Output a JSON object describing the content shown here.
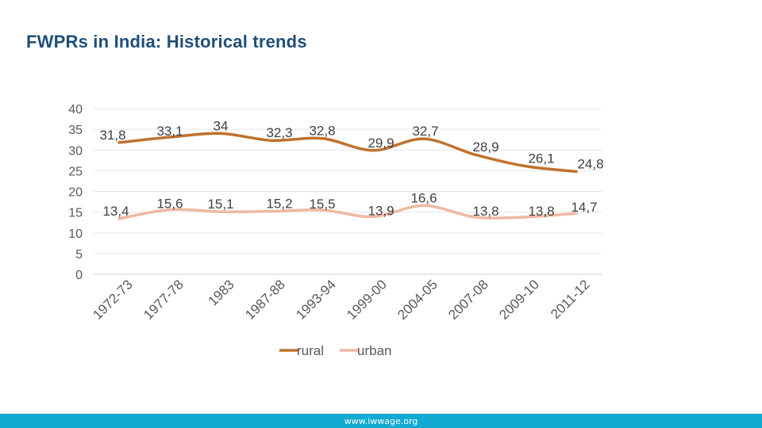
{
  "slide": {
    "title": "FWPRs in India: Historical trends",
    "footer": "www.iwwage.org"
  },
  "colors": {
    "title": "#1f4e79",
    "rural": "#c0712d",
    "urban": "#f0b7a4",
    "footer_bar": "#12a9d2"
  },
  "chart_data": {
    "type": "line",
    "title": "",
    "xlabel": "",
    "ylabel": "",
    "categories": [
      "1972-73",
      "1977-78",
      "1983",
      "1987-88",
      "1993-94",
      "1999-00",
      "2004-05",
      "2007-08",
      "2009-10",
      "2011-12"
    ],
    "ylim": [
      0,
      40
    ],
    "yticks": [
      0,
      5,
      10,
      15,
      20,
      25,
      30,
      35,
      40
    ],
    "grid": true,
    "legend": "bottom",
    "series": [
      {
        "name": "rural",
        "values": [
          31.8,
          33.1,
          34,
          32.3,
          32.8,
          29.9,
          32.7,
          28.9,
          26.1,
          24.8
        ],
        "labels": [
          "31,8",
          "33,1",
          "34",
          "32,3",
          "32,8",
          "29,9",
          "32,7",
          "28,9",
          "26,1",
          "24,8"
        ]
      },
      {
        "name": "urban",
        "values": [
          13.4,
          15.6,
          15.1,
          15.2,
          15.5,
          13.9,
          16.6,
          13.8,
          13.8,
          14.7
        ],
        "labels": [
          "13,4",
          "15,6",
          "15,1",
          "15,2",
          "15,5",
          "13,9",
          "16,6",
          "13,8",
          "13,8",
          "14,7"
        ]
      }
    ]
  }
}
